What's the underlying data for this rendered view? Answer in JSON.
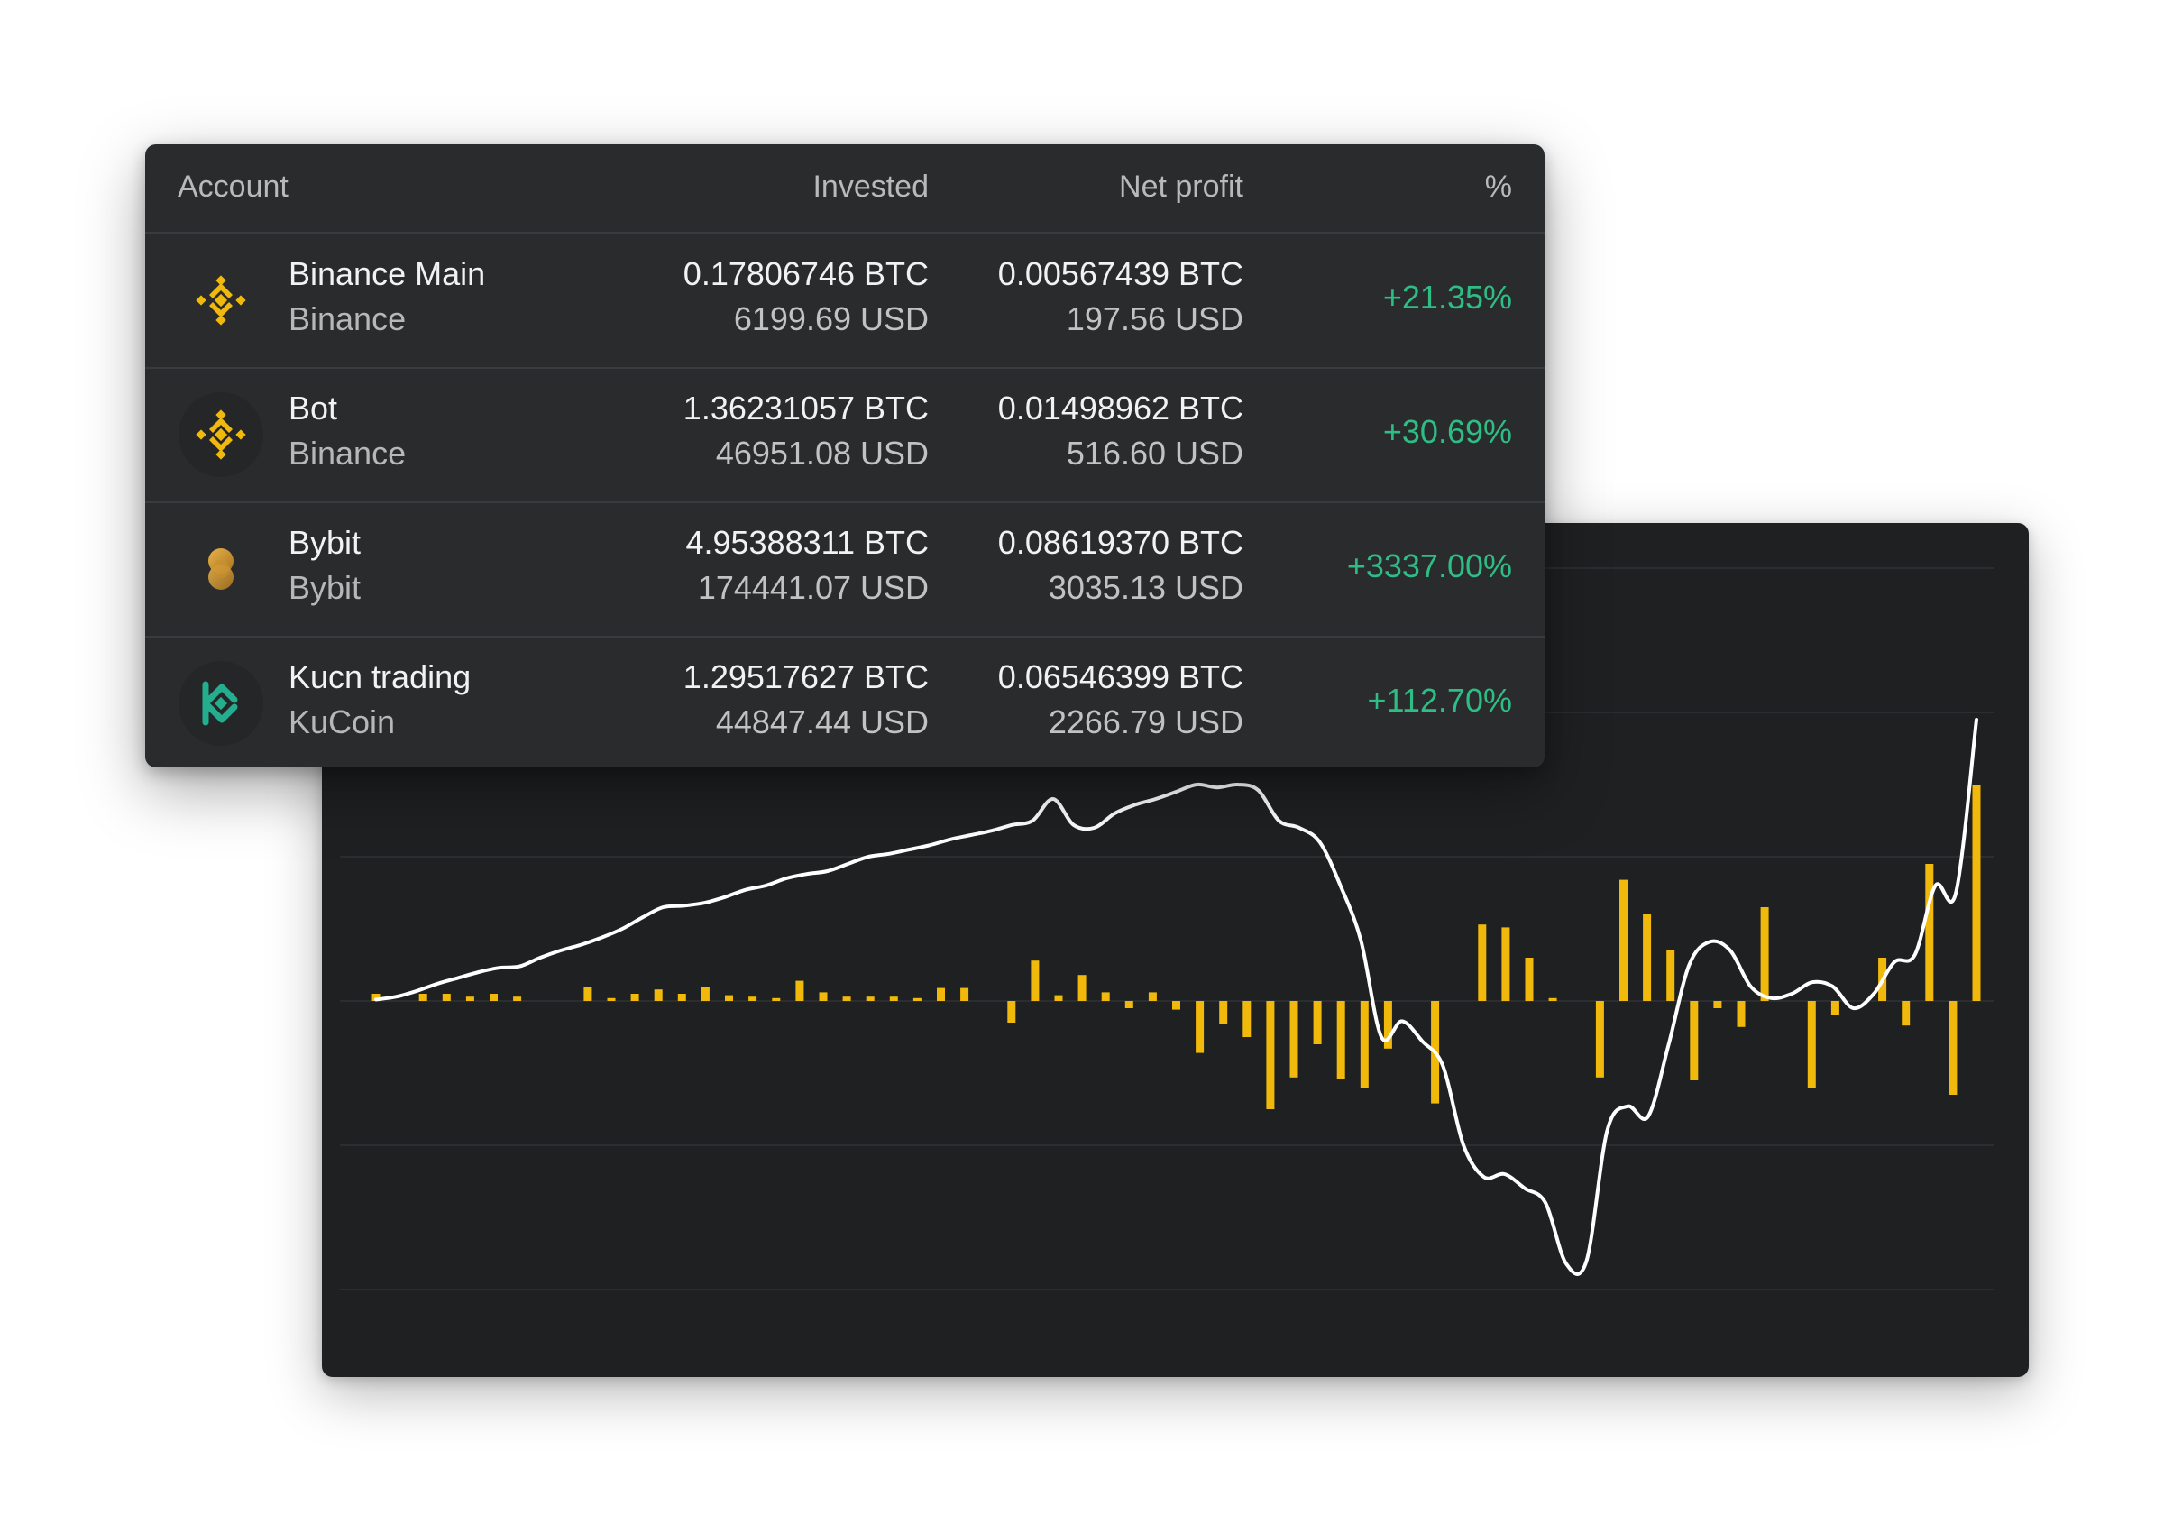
{
  "table": {
    "headers": {
      "account": "Account",
      "invested": "Invested",
      "net_profit": "Net profit",
      "percent": "%"
    },
    "rows": [
      {
        "name": "Binance Main",
        "exchange": "Binance",
        "icon": "binance-icon",
        "invested_btc": "0.17806746 BTC",
        "invested_usd": "6199.69 USD",
        "profit_btc": "0.00567439 BTC",
        "profit_usd": "197.56 USD",
        "percent": "+21.35%"
      },
      {
        "name": "Bot",
        "exchange": "Binance",
        "icon": "binance-icon",
        "invested_btc": "1.36231057 BTC",
        "invested_usd": "46951.08 USD",
        "profit_btc": "0.01498962 BTC",
        "profit_usd": "516.60 USD",
        "percent": "+30.69%"
      },
      {
        "name": "Bybit",
        "exchange": "Bybit",
        "icon": "bybit-icon",
        "invested_btc": "4.95388311 BTC",
        "invested_usd": "174441.07 USD",
        "profit_btc": "0.08619370 BTC",
        "profit_usd": "3035.13 USD",
        "percent": "+3337.00%"
      },
      {
        "name": "Kucn trading",
        "exchange": "KuCoin",
        "icon": "kucoin-icon",
        "invested_btc": "1.29517627 BTC",
        "invested_usd": "44847.44 USD",
        "profit_btc": "0.06546399 BTC",
        "profit_usd": "2266.79 USD",
        "percent": "+112.70%"
      }
    ]
  },
  "colors": {
    "positive": "#2ebd85",
    "binance": "#f0b90b",
    "kucoin": "#24ae8f",
    "bar": "#f0b90b",
    "line": "#ffffff"
  },
  "chart_data": {
    "type": "bar",
    "grid": true,
    "ylim": [
      -2.0,
      3.0
    ],
    "bars": [
      0.05,
      0,
      0.05,
      0.05,
      0.03,
      0.05,
      0.03,
      0,
      0,
      0.1,
      0.02,
      0.05,
      0.08,
      0.05,
      0.1,
      0.04,
      0.03,
      0.02,
      0.14,
      0.06,
      0.03,
      0.03,
      0.03,
      0.02,
      0.09,
      0.09,
      0,
      -0.15,
      0.28,
      0.04,
      0.18,
      0.06,
      -0.05,
      0.06,
      -0.06,
      -0.36,
      -0.16,
      -0.25,
      -0.75,
      -0.53,
      -0.3,
      -0.54,
      -0.6,
      -0.33,
      0,
      -0.71,
      0,
      0.53,
      0.51,
      0.3,
      0.02,
      0,
      -0.53,
      0.84,
      0.6,
      0.35,
      -0.55,
      -0.05,
      -0.18,
      0.65,
      0,
      -0.6,
      -0.1,
      0,
      0.3,
      -0.17,
      0.95,
      -0.65,
      1.5
    ],
    "series": [
      {
        "values": [
          0.01,
          0.03,
          0.07,
          0.12,
          0.16,
          0.2,
          0.23,
          0.24,
          0.3,
          0.35,
          0.39,
          0.44,
          0.5,
          0.58,
          0.65,
          0.66,
          0.68,
          0.72,
          0.77,
          0.8,
          0.85,
          0.88,
          0.9,
          0.95,
          1.0,
          1.02,
          1.05,
          1.08,
          1.12,
          1.15,
          1.18,
          1.22,
          1.25,
          1.4,
          1.22,
          1.2,
          1.3,
          1.36,
          1.4,
          1.45,
          1.5,
          1.48,
          1.5,
          1.46,
          1.25,
          1.2,
          1.1,
          0.8,
          0.42,
          -0.25,
          -0.14,
          -0.28,
          -0.45,
          -1.0,
          -1.22,
          -1.2,
          -1.3,
          -1.4,
          -1.82,
          -1.8,
          -0.9,
          -0.73,
          -0.8,
          -0.3,
          0.25,
          0.41,
          0.35,
          0.1,
          0.02,
          0.05,
          0.13,
          0.1,
          -0.05,
          0.05,
          0.27,
          0.32,
          0.8,
          0.75,
          1.95
        ]
      }
    ]
  }
}
